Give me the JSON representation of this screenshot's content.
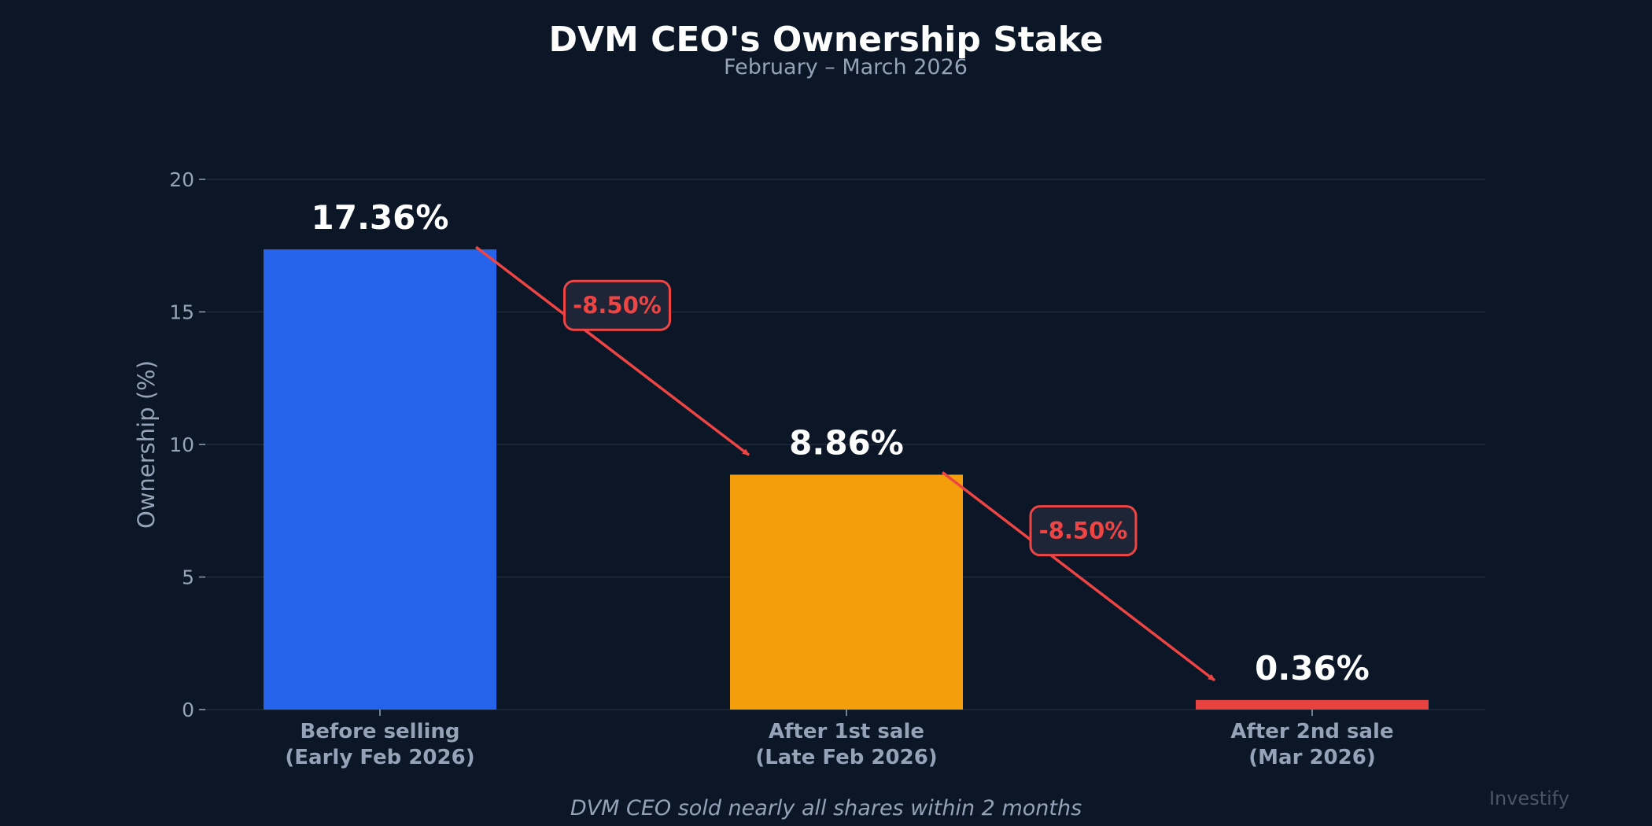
{
  "chart_data": {
    "type": "bar",
    "title": "DVM CEO's Ownership Stake",
    "subtitle": "February – March 2026",
    "ylabel": "Ownership (%)",
    "xlabel": "",
    "ylim": [
      0,
      20
    ],
    "yticks": [
      0,
      5,
      10,
      15,
      20
    ],
    "grid": true,
    "categories": [
      [
        "Before selling",
        "(Early Feb 2026)"
      ],
      [
        "After 1st sale",
        "(Late Feb 2026)"
      ],
      [
        "After 2nd sale",
        "(Mar 2026)"
      ]
    ],
    "values": [
      17.36,
      8.86,
      0.36
    ],
    "data_labels": [
      "17.36%",
      "8.86%",
      "0.36%"
    ],
    "colors": [
      "#2563eb",
      "#f59e0b",
      "#e84343"
    ],
    "annotations": [
      {
        "text": "-8.50%",
        "from": 0,
        "to": 1
      },
      {
        "text": "-8.50%",
        "from": 1,
        "to": 2
      }
    ],
    "annotation_color": "#ef4444",
    "footnote": "DVM CEO sold nearly all shares within 2 months",
    "watermark": "Investify"
  }
}
